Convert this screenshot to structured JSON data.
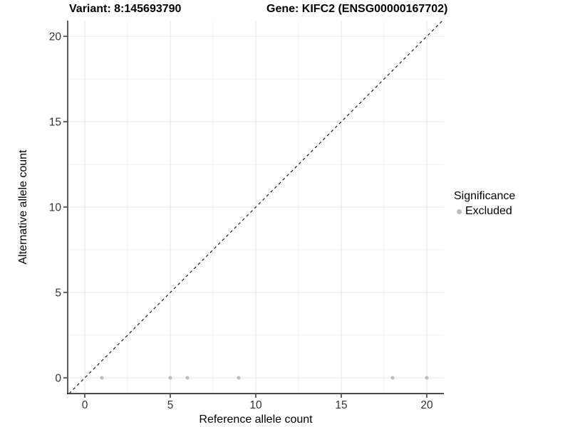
{
  "header": {
    "variant_title": "Variant: 8:145693790",
    "gene_title": "Gene: KIFC2 (ENSG00000167702)"
  },
  "chart_data": {
    "type": "scatter",
    "title": "Variant: 8:145693790 / Gene: KIFC2 (ENSG00000167702)",
    "xlabel": "Reference allele count",
    "ylabel": "Alternative allele count",
    "xlim": [
      -1,
      21
    ],
    "ylim": [
      -0.92,
      20.92
    ],
    "x_ticks": [
      0,
      5,
      10,
      15,
      20
    ],
    "y_ticks": [
      0,
      5,
      10,
      15,
      20
    ],
    "x_minor_breaks": [
      2.5,
      7.5,
      12.5,
      17.5
    ],
    "y_minor_breaks": [
      2.5,
      7.5,
      12.5,
      17.5
    ],
    "grid": "major-and-minor",
    "legend_position": "right",
    "series": [
      {
        "name": "Excluded",
        "color": "#bdbdbd",
        "marker_diameter_px": 5,
        "points": [
          [
            1,
            0
          ],
          [
            5,
            0
          ],
          [
            6,
            0
          ],
          [
            9,
            0
          ],
          [
            18,
            0
          ],
          [
            20,
            0
          ]
        ]
      }
    ],
    "identity_line": {
      "slope": 1,
      "intercept": 0,
      "style": "dashed",
      "color": "#1a1a1a"
    }
  },
  "legend": {
    "title": "Significance",
    "items": [
      {
        "label": "Excluded",
        "color": "#bdbdbd"
      }
    ]
  },
  "style_colors": {
    "grid_major": "#e6e6e6",
    "grid_minor": "#f2f2f2",
    "axis_line": "#333333",
    "tick_label": "#333333",
    "point_gray": "#bdbdbd"
  }
}
